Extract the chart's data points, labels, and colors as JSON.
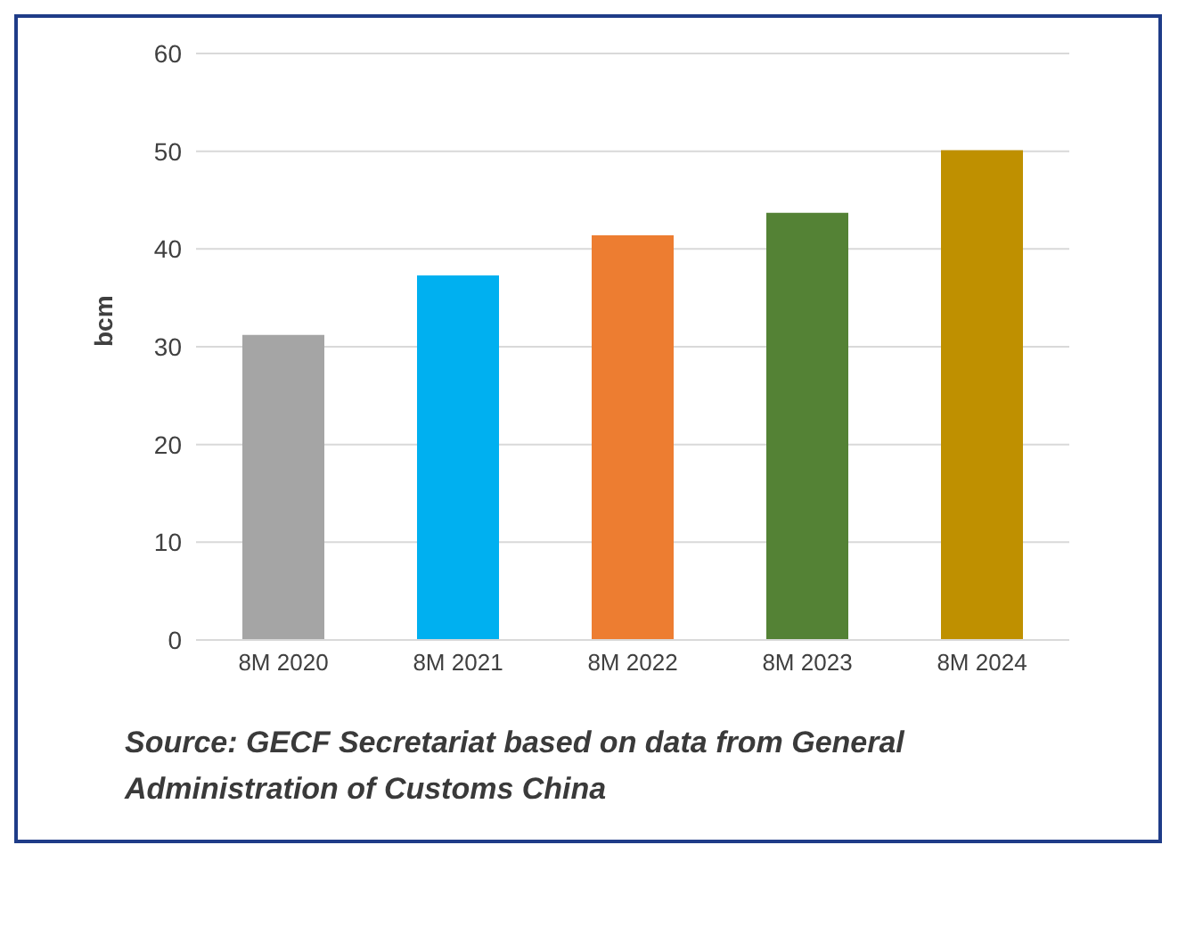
{
  "chart_data": {
    "type": "bar",
    "ylabel": "bcm",
    "categories": [
      "8M 2020",
      "8M 2021",
      "8M 2022",
      "8M 2023",
      "8M 2024"
    ],
    "values": [
      31.2,
      37.3,
      41.4,
      43.7,
      50.1
    ],
    "colors": [
      "#a5a5a5",
      "#00b0f0",
      "#ed7d31",
      "#548235",
      "#bf9000"
    ],
    "ylim": [
      0,
      60
    ],
    "yticks": [
      0,
      10,
      20,
      30,
      40,
      50,
      60
    ],
    "grid": "y",
    "annotations": [
      "Source: GECF Secretariat based on data from General Administration of Customs China"
    ]
  }
}
